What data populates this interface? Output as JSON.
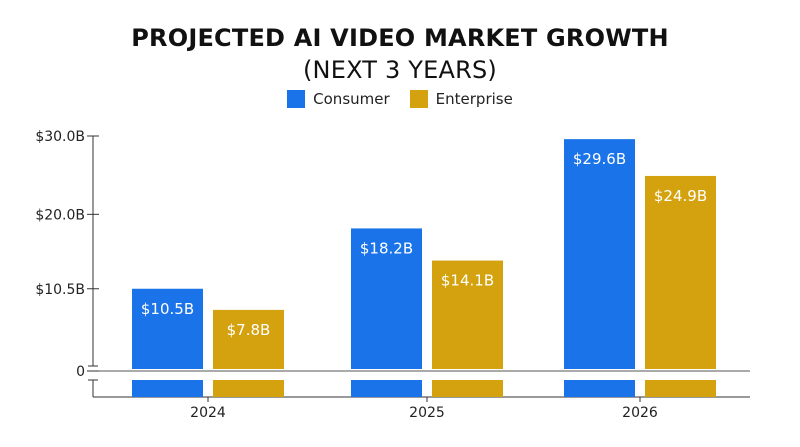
{
  "title_line1": "PROJECTED AI VIDEO MARKET GROWTH",
  "title_line2": "(NEXT 3 YEARS)",
  "colors": {
    "consumer": "#1a73e8",
    "enterprise": "#d4a20e",
    "axis": "#333333",
    "label_on_bar": "#ffffff"
  },
  "chart_data": {
    "type": "bar",
    "title": "PROJECTED AI VIDEO MARKET GROWTH (NEXT 3 YEARS)",
    "categories": [
      "2024",
      "2025",
      "2026"
    ],
    "series": [
      {
        "name": "Consumer",
        "values": [
          10.5,
          18.2,
          29.6
        ],
        "labels": [
          "$10.5B",
          "$18.2B",
          "$29.6B"
        ]
      },
      {
        "name": "Enterprise",
        "values": [
          7.8,
          14.1,
          24.9
        ],
        "labels": [
          "$7.8B",
          "$14.1B",
          "$24.9B"
        ]
      }
    ],
    "y_ticks": [
      {
        "value": 0,
        "label": "0"
      },
      {
        "value": 10.5,
        "label": "$10.5B"
      },
      {
        "value": 20,
        "label": "$20.0B"
      },
      {
        "value": 30,
        "label": "$30.0B"
      }
    ],
    "ylim": [
      0,
      30
    ],
    "xlabel": "",
    "ylabel": "",
    "grid": false,
    "legend_position": "top-center",
    "axis_break": true
  }
}
